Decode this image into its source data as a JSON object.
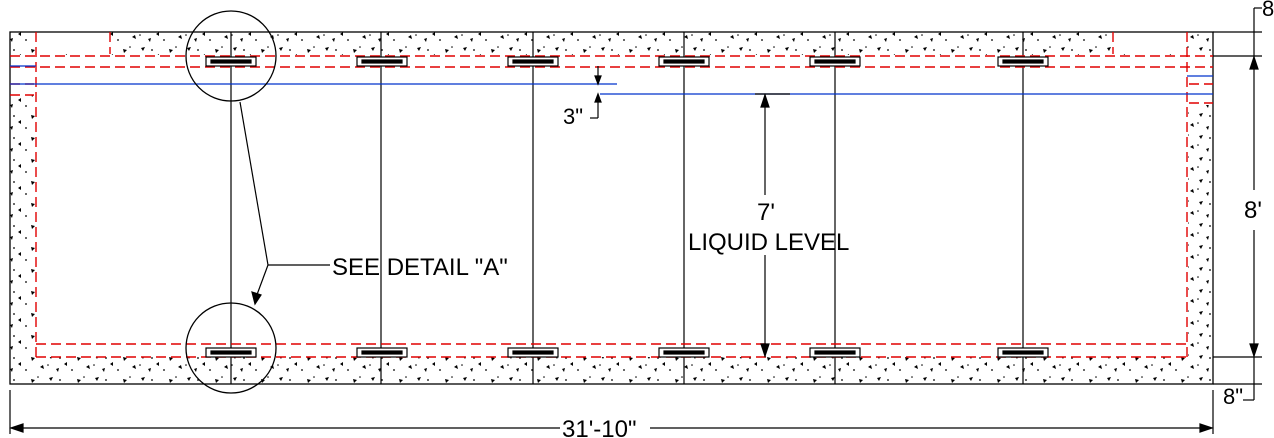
{
  "labels": {
    "overall_length": "31'-10\"",
    "height": "8'",
    "top_wall": "8",
    "bottom_wall": "8\"",
    "freeboard": "3\"",
    "liquid_depth": "7'",
    "liquid_level": "LIQUID LEVEL",
    "detail_callout": "SEE DETAIL \"A\""
  },
  "colors": {
    "outline": "#000000",
    "liquid_line": "#0033cc",
    "rebar_dashed": "#e00000"
  }
}
